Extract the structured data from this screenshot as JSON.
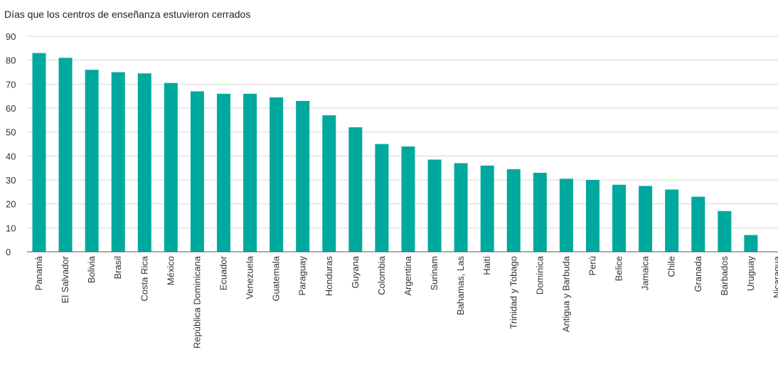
{
  "chart_data": {
    "type": "bar",
    "title": "Días que los centros de enseñanza estuvieron cerrados",
    "xlabel": "",
    "ylabel": "",
    "ylim": [
      0,
      90
    ],
    "yticks": [
      0,
      10,
      20,
      30,
      40,
      50,
      60,
      70,
      80,
      90
    ],
    "grid": true,
    "bar_color": "#00a99d",
    "categories": [
      "Panamá",
      "El Salvador",
      "Bolivia",
      "Brasil",
      "Costa Rica",
      "México",
      "República Dominicana",
      "Ecuador",
      "Venezuela",
      "Guatemala",
      "Paraguay",
      "Honduras",
      "Guyana",
      "Colombia",
      "Argentina",
      "Surinam",
      "Bahamas, Las",
      "Haití",
      "Trinidad y Tobago",
      "Dominica",
      "Antigua y Barbuda",
      "Perú",
      "Belice",
      "Jamaica",
      "Chile",
      "Granada",
      "Barbados",
      "Uruguay",
      "Nicaragua"
    ],
    "values": [
      83,
      81,
      76,
      75,
      74.5,
      70.5,
      67,
      66,
      66,
      64.5,
      63,
      57,
      52,
      45,
      44,
      38.5,
      37,
      36,
      34.5,
      33,
      30.5,
      30,
      28,
      27.5,
      26,
      23,
      17,
      7,
      0
    ]
  }
}
